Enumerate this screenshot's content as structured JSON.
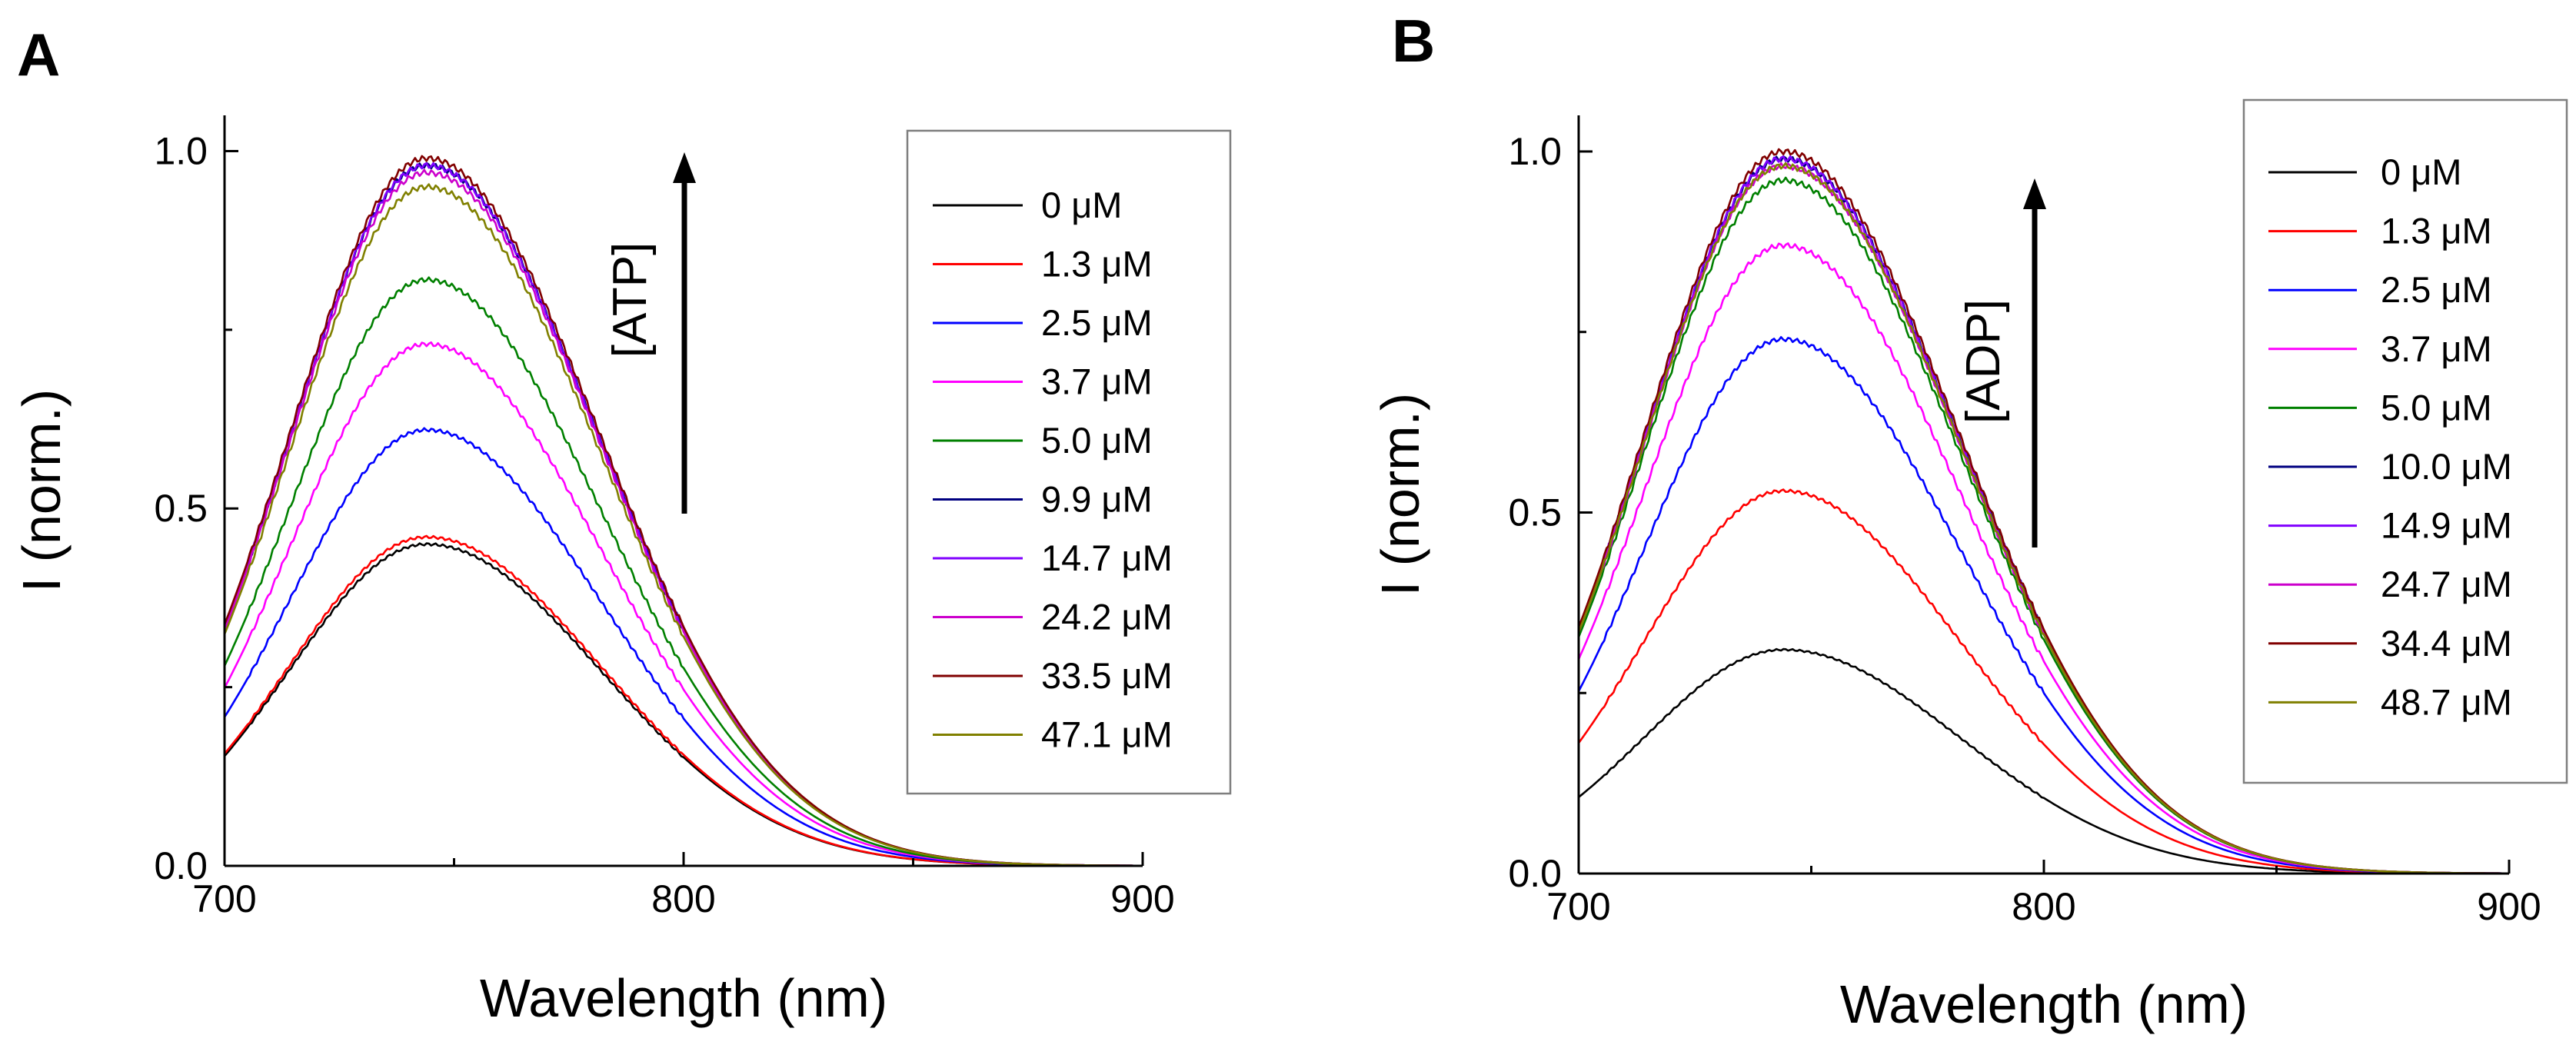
{
  "chart_data": [
    {
      "type": "line",
      "panel_label": "A",
      "xlabel": "Wavelength (nm)",
      "ylabel": "I (norm.)",
      "xlim": [
        700,
        900
      ],
      "ylim": [
        0,
        1.05
      ],
      "xticks": [
        "700",
        "800",
        "900"
      ],
      "yticks": [
        "0.0",
        "0.5",
        "1.0"
      ],
      "xtick_values": [
        700,
        800,
        900
      ],
      "ytick_values": [
        0,
        0.5,
        1.0
      ],
      "legend_position": "top-right",
      "annotation": "[ATP]",
      "annotation_arrow": "up",
      "curve_model": {
        "peak_nm": 744,
        "sigma_left_nm": 30,
        "sigma_right_nm": 38
      },
      "series": [
        {
          "name": "0 μM",
          "peak": 0.45,
          "color": "#000000"
        },
        {
          "name": "1.3 μM",
          "peak": 0.46,
          "color": "#ff0000"
        },
        {
          "name": "2.5 μM",
          "peak": 0.61,
          "color": "#0000ff"
        },
        {
          "name": "3.7 μM",
          "peak": 0.73,
          "color": "#ff00ff"
        },
        {
          "name": "5.0 μM",
          "peak": 0.82,
          "color": "#008000"
        },
        {
          "name": "9.9 μM",
          "peak": 0.98,
          "color": "#000080"
        },
        {
          "name": "14.7 μM",
          "peak": 0.98,
          "color": "#8000ff"
        },
        {
          "name": "24.2 μM",
          "peak": 0.97,
          "color": "#cc00cc"
        },
        {
          "name": "33.5 μM",
          "peak": 0.99,
          "color": "#800000"
        },
        {
          "name": "47.1 μM",
          "peak": 0.95,
          "color": "#808000"
        }
      ]
    },
    {
      "type": "line",
      "panel_label": "B",
      "xlabel": "Wavelength (nm)",
      "ylabel": "I (norm.)",
      "xlim": [
        700,
        900
      ],
      "ylim": [
        0,
        1.05
      ],
      "xticks": [
        "700",
        "800",
        "900"
      ],
      "yticks": [
        "0.0",
        "0.5",
        "1.0"
      ],
      "xtick_values": [
        700,
        800,
        900
      ],
      "ytick_values": [
        0,
        0.5,
        1.0
      ],
      "legend_position": "top-right",
      "annotation": "[ADP]",
      "annotation_arrow": "up",
      "curve_model": {
        "peak_nm": 744,
        "sigma_left_nm": 30,
        "sigma_right_nm": 38
      },
      "series": [
        {
          "name": "0 μM",
          "peak": 0.31,
          "color": "#000000"
        },
        {
          "name": "1.3 μM",
          "peak": 0.53,
          "color": "#ff0000"
        },
        {
          "name": "2.5 μM",
          "peak": 0.74,
          "color": "#0000ff"
        },
        {
          "name": "3.7 μM",
          "peak": 0.87,
          "color": "#ff00ff"
        },
        {
          "name": "5.0 μM",
          "peak": 0.96,
          "color": "#008000"
        },
        {
          "name": "10.0 μM",
          "peak": 0.99,
          "color": "#000080"
        },
        {
          "name": "14.9 μM",
          "peak": 0.99,
          "color": "#8000ff"
        },
        {
          "name": "24.7 μM",
          "peak": 0.98,
          "color": "#cc00cc"
        },
        {
          "name": "34.4 μM",
          "peak": 1.0,
          "color": "#800000"
        },
        {
          "name": "48.7 μM",
          "peak": 0.98,
          "color": "#808000"
        }
      ]
    }
  ]
}
